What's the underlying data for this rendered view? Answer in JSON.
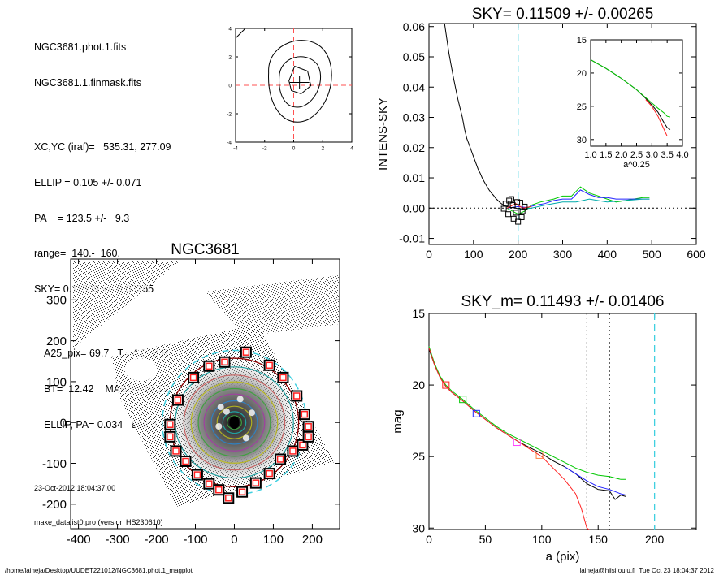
{
  "info": {
    "lines1": [
      "NGC3681.phot.1.fits",
      "NGC3681.1.finmask.fits"
    ],
    "lines2": [
      "XC,YC (iraf)=   535.31, 277.09",
      "ELLIP = 0.105 +/- 0.071",
      "PA    = 123.5 +/-   9.3",
      "range=  140.-  160.",
      "SKY= 0.11509 +/- 0.00265"
    ],
    "lines3": [
      "A25_pix= 69.7   T= 4.0  B R",
      "BT=  12.42    MABS=-19.12",
      "ELLIP, PA= 0.034   999.0"
    ],
    "date": "23-Oct-2012 18:04:37.00",
    "program": "make_datalist0.pro (version HS230610)"
  },
  "footer": {
    "left": "/home/laineja/Desktop/UUDET221012/NGC3681.phot.1_magplot",
    "right": "laineja@hiisi.oulu.fi  Tue Oct 23 18:04:37 2012"
  },
  "chart_data": [
    {
      "id": "center-contour",
      "type": "contour",
      "xlim": [
        -4,
        4
      ],
      "ylim": [
        -4,
        4
      ],
      "xticks": [
        "-4",
        "-2",
        "0",
        "2",
        "4"
      ],
      "yticks": [
        "-4",
        "-2",
        "0",
        "2",
        "4"
      ],
      "center": [
        0,
        0
      ],
      "peak": [
        0.4,
        0.2
      ]
    },
    {
      "id": "image-panel",
      "type": "image",
      "title": "NGC3681",
      "xlim": [
        -420,
        270
      ],
      "ylim": [
        -260,
        400
      ],
      "xticks": [
        "-400",
        "-300",
        "-200",
        "-100",
        "0",
        "100",
        "200"
      ],
      "yticks": [
        "-200",
        "-100",
        "0",
        "100",
        "200",
        "300"
      ],
      "xtick_values": [
        -400,
        -300,
        -200,
        -100,
        0,
        100,
        200
      ],
      "ytick_values": [
        -200,
        -100,
        0,
        100,
        200,
        300
      ],
      "sky_ring_radius": 185,
      "outer_ellipse_radius": 165,
      "sky_boxes": [
        [
          -15,
          -185
        ],
        [
          20,
          -170
        ],
        [
          55,
          -148
        ],
        [
          90,
          -125
        ],
        [
          118,
          -90
        ],
        [
          150,
          -70
        ],
        [
          175,
          -55
        ],
        [
          190,
          -35
        ],
        [
          190,
          -10
        ],
        [
          180,
          20
        ],
        [
          160,
          65
        ],
        [
          125,
          110
        ],
        [
          90,
          140
        ],
        [
          30,
          172
        ],
        [
          -25,
          148
        ],
        [
          -65,
          138
        ],
        [
          -105,
          110
        ],
        [
          -145,
          55
        ],
        [
          -165,
          -5
        ],
        [
          -165,
          -35
        ],
        [
          -150,
          -70
        ],
        [
          -125,
          -95
        ],
        [
          -95,
          -128
        ],
        [
          -65,
          -150
        ],
        [
          -40,
          -165
        ]
      ]
    },
    {
      "id": "sky-profile",
      "type": "line",
      "title": "SKY= 0.11509 +/- 0.00265",
      "xlabel": "",
      "ylabel": "INTENS-SKY",
      "xlim": [
        0,
        600
      ],
      "ylim": [
        -0.012,
        0.061
      ],
      "xticks": [
        "0",
        "100",
        "200",
        "300",
        "400",
        "500",
        "600"
      ],
      "yticks": [
        "-0.01",
        "0.00",
        "0.01",
        "0.02",
        "0.03",
        "0.04",
        "0.05",
        "0.06"
      ],
      "xtick_values": [
        0,
        100,
        200,
        300,
        400,
        500,
        600
      ],
      "ytick_values": [
        -0.01,
        0.0,
        0.01,
        0.02,
        0.03,
        0.04,
        0.05,
        0.06
      ],
      "sky_line_x": 200,
      "series": [
        {
          "color": "#000000",
          "x": [
            35,
            45,
            55,
            65,
            75,
            80,
            85,
            90,
            95,
            100,
            105,
            110,
            115,
            120,
            125,
            130,
            135,
            140,
            145,
            150,
            155,
            160,
            165,
            170,
            175,
            180,
            185,
            190,
            195,
            200,
            205
          ],
          "y": [
            0.061,
            0.051,
            0.043,
            0.036,
            0.03,
            0.026,
            0.023,
            0.021,
            0.019,
            0.017,
            0.015,
            0.013,
            0.0115,
            0.0098,
            0.0085,
            0.0072,
            0.006,
            0.005,
            0.0042,
            0.0032,
            0.0025,
            0.0018,
            0.0012,
            0.0008,
            0.0005,
            0.0003,
            0.0002,
            0.0001,
            0.0,
            -0.0002,
            0.0
          ]
        },
        {
          "color": "#00c800",
          "x": [
            175,
            200,
            215,
            230,
            250,
            280,
            300,
            320,
            340,
            360,
            380,
            400,
            420,
            440,
            460,
            480,
            495
          ],
          "y": [
            0.0,
            -0.002,
            -0.001,
            0.001,
            0.002,
            0.003,
            0.004,
            0.004,
            0.007,
            0.005,
            0.004,
            0.003,
            0.002,
            0.0025,
            0.003,
            0.0035,
            0.0035
          ]
        },
        {
          "color": "#2020ff",
          "x": [
            175,
            200,
            220,
            240,
            260,
            280,
            300,
            320,
            340,
            360,
            380,
            400,
            420,
            440,
            460,
            480,
            495
          ],
          "y": [
            0.0,
            0.0005,
            0.0002,
            0.001,
            0.0015,
            0.0025,
            0.003,
            0.003,
            0.006,
            0.0045,
            0.0035,
            0.0035,
            0.003,
            0.003,
            0.003,
            0.003,
            0.003
          ]
        },
        {
          "color": "#ff2020",
          "x": [
            175,
            195,
            210,
            230
          ],
          "y": [
            0.0,
            0.0015,
            0.0,
            0.0005
          ]
        },
        {
          "color": "#00aaaa",
          "x": [
            200,
            230,
            260,
            300,
            330,
            360,
            380,
            400,
            440,
            480,
            495
          ],
          "y": [
            -0.0005,
            0.0,
            0.001,
            0.002,
            0.002,
            0.003,
            0.0025,
            0.002,
            0.0025,
            0.003,
            0.003
          ]
        }
      ],
      "boxes": [
        [
          172,
          0.0015
        ],
        [
          180,
          0.0025
        ],
        [
          188,
          0.001
        ],
        [
          195,
          -0.0015
        ],
        [
          205,
          0.0018
        ],
        [
          210,
          -0.001
        ],
        [
          215,
          0.0005
        ],
        [
          168,
          -0.0002
        ],
        [
          178,
          -0.002
        ],
        [
          190,
          -0.0035
        ],
        [
          200,
          -0.0045
        ],
        [
          208,
          -0.003
        ],
        [
          185,
          0.003
        ],
        [
          198,
          0.002
        ]
      ],
      "inset": {
        "xlabel": "a^0.25",
        "xlim": [
          1.0,
          4.0
        ],
        "ylim": [
          15,
          31
        ],
        "xticks": [
          "1.0",
          "1.5",
          "2.0",
          "2.5",
          "3.0",
          "3.5",
          "4.0"
        ],
        "yticks": [
          "15",
          "20",
          "25",
          "30"
        ],
        "xtick_values": [
          1.0,
          1.5,
          2.0,
          2.5,
          3.0,
          3.5,
          4.0
        ],
        "ytick_values": [
          15,
          20,
          25,
          30
        ],
        "series": [
          {
            "color": "#000000",
            "x": [
              1.0,
              1.5,
              2.0,
              2.5,
              2.8,
              3.0,
              3.2,
              3.4,
              3.5,
              3.6
            ],
            "y": [
              18.0,
              19.3,
              20.8,
              22.5,
              23.8,
              24.8,
              25.9,
              27.5,
              28.2,
              28.5
            ]
          },
          {
            "color": "#00c800",
            "x": [
              1.0,
              1.5,
              2.0,
              2.5,
              2.8,
              3.0,
              3.2,
              3.4,
              3.5,
              3.6
            ],
            "y": [
              18.0,
              19.3,
              20.8,
              22.5,
              23.7,
              24.5,
              25.3,
              26.0,
              26.5,
              26.6
            ]
          },
          {
            "color": "#ff2020",
            "x": [
              2.8,
              3.0,
              3.2,
              3.4,
              3.5
            ],
            "y": [
              24.0,
              25.0,
              26.5,
              28.5,
              29.5
            ]
          }
        ]
      }
    },
    {
      "id": "magnitude-profile",
      "type": "line",
      "title": "SKY_m=  0.11493 +/- 0.01406",
      "xlabel": "a (pix)",
      "ylabel": "mag",
      "xlim": [
        0,
        237
      ],
      "ylim": [
        15,
        30.1
      ],
      "xticks": [
        "0",
        "50",
        "100",
        "150",
        "200"
      ],
      "yticks": [
        "15",
        "20",
        "25",
        "30"
      ],
      "xtick_values": [
        0,
        50,
        100,
        150,
        200
      ],
      "ytick_values": [
        15,
        20,
        25,
        30
      ],
      "dotted_lines_x": [
        140,
        160
      ],
      "sky_line_x": 200,
      "series": [
        {
          "color": "#000000",
          "x": [
            0,
            5,
            10,
            15,
            20,
            30,
            40,
            50,
            60,
            70,
            80,
            90,
            100,
            110,
            120,
            130,
            140,
            150,
            160,
            165,
            170,
            175
          ],
          "y": [
            17.5,
            18.6,
            19.5,
            20.1,
            20.5,
            21.1,
            21.8,
            22.4,
            23.0,
            23.5,
            24.0,
            24.4,
            24.8,
            25.3,
            25.7,
            26.2,
            26.9,
            27.3,
            27.4,
            28.0,
            27.7,
            27.8
          ]
        },
        {
          "color": "#00c800",
          "x": [
            0,
            5,
            10,
            15,
            20,
            30,
            40,
            50,
            60,
            70,
            80,
            90,
            100,
            110,
            120,
            130,
            140,
            150,
            160,
            170,
            175
          ],
          "y": [
            17.3,
            18.5,
            19.4,
            20.0,
            20.4,
            21.0,
            21.7,
            22.3,
            22.9,
            23.4,
            23.8,
            24.2,
            24.6,
            25.0,
            25.4,
            25.8,
            26.1,
            26.3,
            26.4,
            26.6,
            26.6
          ]
        },
        {
          "color": "#ff2020",
          "x": [
            0,
            5,
            10,
            15,
            20,
            30,
            40,
            50,
            60,
            70,
            80,
            90,
            100,
            110,
            120,
            130,
            135,
            140,
            142
          ],
          "y": [
            17.4,
            18.6,
            19.5,
            20.1,
            20.5,
            21.1,
            21.8,
            22.4,
            23.0,
            23.5,
            24.0,
            24.5,
            25.0,
            25.8,
            26.6,
            27.6,
            28.6,
            30.0,
            30.1
          ]
        },
        {
          "color": "#2020ff",
          "x": [
            120,
            130,
            140,
            150,
            160,
            170,
            175
          ],
          "y": [
            25.7,
            26.2,
            26.7,
            27.1,
            27.3,
            27.6,
            27.7
          ]
        }
      ],
      "boxes": [
        {
          "x": 15,
          "y": 20.0,
          "color": "#ff2020"
        },
        {
          "x": 30,
          "y": 21.0,
          "color": "#00c800"
        },
        {
          "x": 42,
          "y": 22.0,
          "color": "#2020ff"
        },
        {
          "x": 78,
          "y": 24.0,
          "color": "#ff40ff"
        },
        {
          "x": 98,
          "y": 24.9,
          "color": "#ff8040"
        }
      ]
    }
  ]
}
